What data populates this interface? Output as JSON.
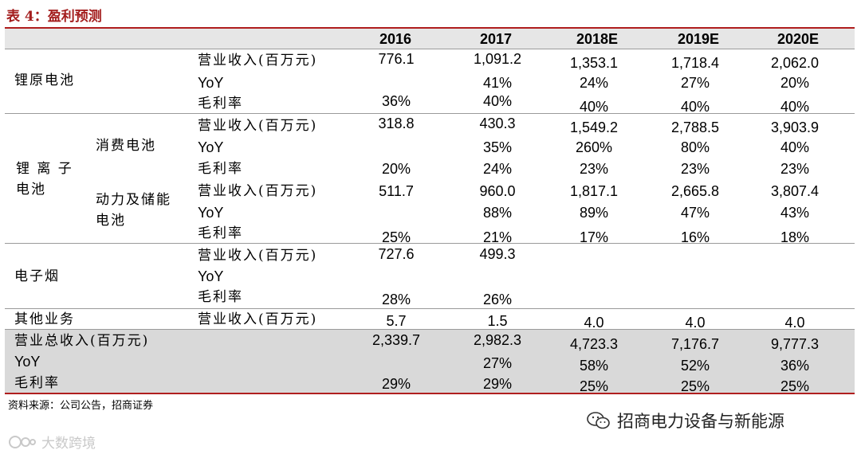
{
  "caption": "表 4：盈利预测",
  "header": {
    "c2016": "2016",
    "c2017": "2017",
    "c2018": "2018E",
    "c2019": "2019E",
    "c2020": "2020E"
  },
  "labels": {
    "revenue": "营业收入(百万元)",
    "yoy": "YoY",
    "margin": "毛利率"
  },
  "seg": {
    "li_primary": "锂原电池",
    "li_ion": "锂 离 子\n电池",
    "li_ion_l1": "锂 离 子",
    "li_ion_l2": "电池",
    "consumer": "消费电池",
    "power_l1": "动力及储能",
    "power_l2": "电池",
    "ecig": "电子烟",
    "other": "其他业务",
    "total_rev": "营业总收入(百万元)",
    "total_yoy": "YoY",
    "total_margin": "毛利率"
  },
  "rows": {
    "li_rev": [
      "776.1",
      "1,091.2",
      "1,353.1",
      "1,718.4",
      "2,062.0"
    ],
    "li_yoy": [
      "",
      "41%",
      "24%",
      "27%",
      "20%"
    ],
    "li_margin": [
      "36%",
      "40%",
      "40%",
      "40%",
      "40%"
    ],
    "con_rev": [
      "318.8",
      "430.3",
      "1,549.2",
      "2,788.5",
      "3,903.9"
    ],
    "con_yoy": [
      "",
      "35%",
      "260%",
      "80%",
      "40%"
    ],
    "con_margin": [
      "20%",
      "24%",
      "23%",
      "23%",
      "23%"
    ],
    "pow_rev": [
      "511.7",
      "960.0",
      "1,817.1",
      "2,665.8",
      "3,807.4"
    ],
    "pow_yoy": [
      "",
      "88%",
      "89%",
      "47%",
      "43%"
    ],
    "pow_margin": [
      "25%",
      "21%",
      "17%",
      "16%",
      "18%"
    ],
    "ecig_rev": [
      "727.6",
      "499.3",
      "",
      "",
      ""
    ],
    "ecig_yoy": [
      "",
      "",
      "",
      "",
      ""
    ],
    "ecig_margin": [
      "28%",
      "26%",
      "",
      "",
      ""
    ],
    "other_rev": [
      "5.7",
      "1.5",
      "4.0",
      "4.0",
      "4.0"
    ],
    "total_rev": [
      "2,339.7",
      "2,982.3",
      "4,723.3",
      "7,176.7",
      "9,777.3"
    ],
    "total_yoy": [
      "",
      "27%",
      "58%",
      "52%",
      "36%"
    ],
    "total_margin": [
      "29%",
      "29%",
      "25%",
      "25%",
      "25%"
    ]
  },
  "source": "资料来源：公司公告，招商证券",
  "brand": "招商电力设备与新能源",
  "watermark": "大数跨境",
  "colors": {
    "accent": "#b01e1e",
    "summary_bg": "#d9d9d9",
    "header_bg": "#e6e6e6"
  }
}
